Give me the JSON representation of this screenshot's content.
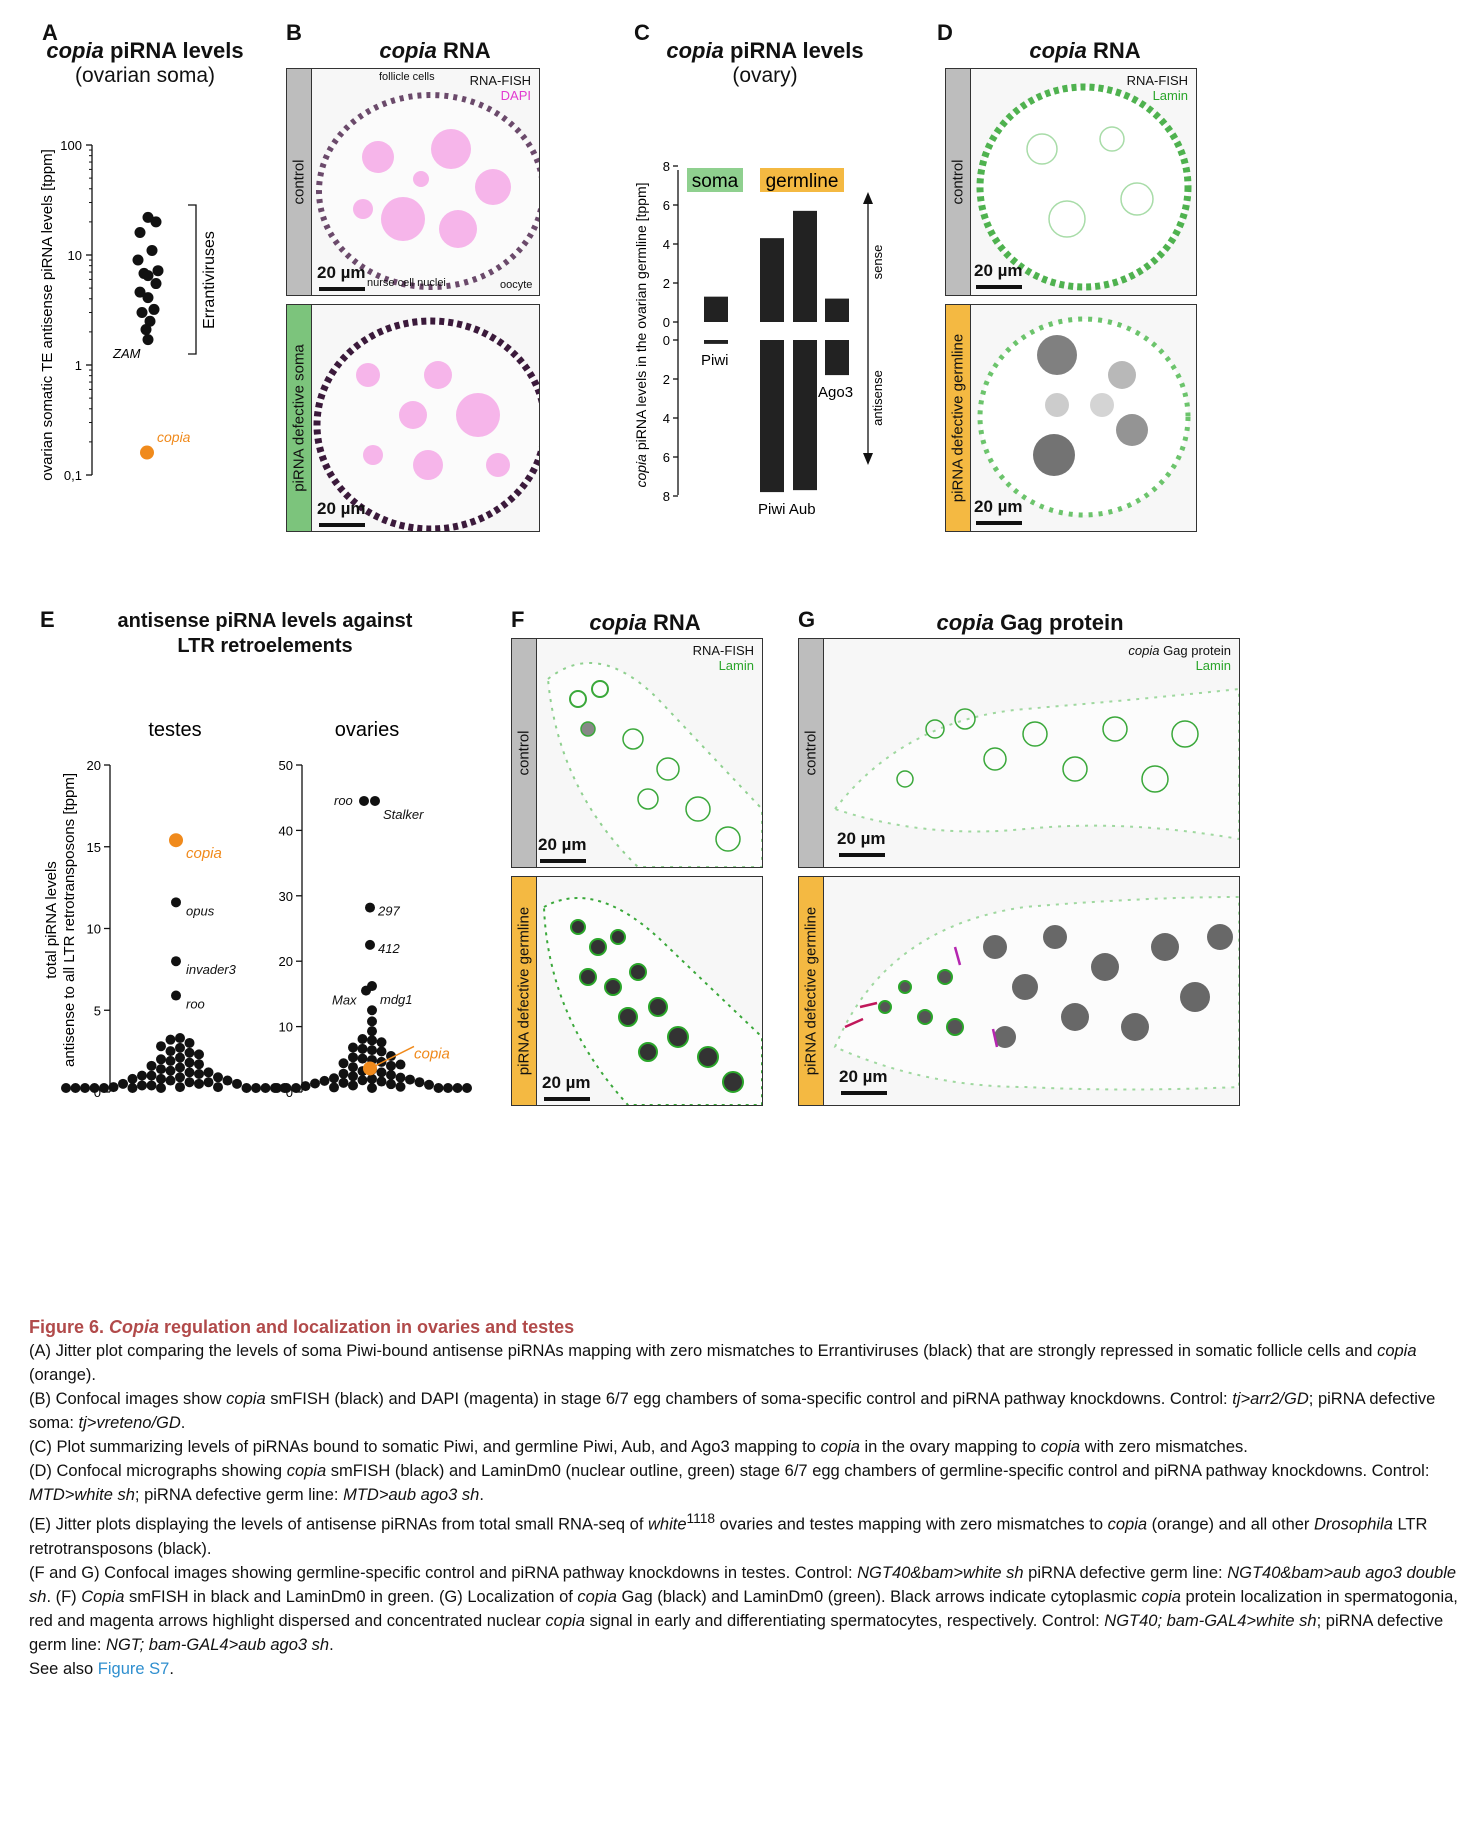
{
  "panelA": {
    "label": "A",
    "title_italic": "copia",
    "title_rest": " piRNA levels",
    "subtitle": "(ovarian soma)",
    "ylabel": "ovarian somatic TE antisense piRNA levels [tppm]",
    "group_label": "Errantiviruses",
    "annotations": {
      "zam": "ZAM",
      "copia": "copia"
    },
    "colors": {
      "black": "#111111",
      "copia": "#f08a1c"
    }
  },
  "panelB": {
    "label": "B",
    "title_italic": "copia",
    "title_rest": " RNA",
    "top": {
      "condition": "control",
      "legend1": "RNA-FISH",
      "legend2": "DAPI",
      "scale": "20 µm",
      "labels": {
        "follicle": "follicle cells",
        "nurse": "nurse cell nuclei",
        "oocyte": "oocyte"
      }
    },
    "bottom": {
      "condition": "piRNA defective soma",
      "scale": "20 µm"
    }
  },
  "panelC": {
    "label": "C",
    "title_italic": "copia",
    "title_rest": " piRNA levels",
    "subtitle": "(ovary)",
    "ylabel_italic": "copia",
    "ylabel_rest": " piRNA levels in the ovarian germline [tppm]",
    "soma_label": "soma",
    "germline_label": "germline",
    "sense_label": "sense",
    "antisense_label": "antisense",
    "bar_labels": {
      "piwi_soma": "Piwi",
      "piwi_aub": "Piwi Aub",
      "ago3": "Ago3"
    }
  },
  "panelD": {
    "label": "D",
    "title_italic": "copia",
    "title_rest": " RNA",
    "top": {
      "condition": "control",
      "legend1": "RNA-FISH",
      "legend2": "Lamin",
      "scale": "20 µm"
    },
    "bottom": {
      "condition": "piRNA defective germline",
      "scale": "20 µm"
    }
  },
  "panelE": {
    "label": "E",
    "title_line1": "antisense piRNA levels against",
    "title_line2": "LTR retroelements",
    "ylabel_line1": "total piRNA levels",
    "ylabel_line2": "antisense to all LTR retrotransposons [tppm]",
    "testes_title": "testes",
    "ovaries_title": "ovaries"
  },
  "panelF": {
    "label": "F",
    "title_italic": "copia",
    "title_rest": " RNA",
    "top": {
      "condition": "control",
      "legend1": "RNA-FISH",
      "legend2": "Lamin",
      "scale": "20 µm"
    },
    "bottom": {
      "condition": "piRNA defective germline",
      "scale": "20 µm"
    }
  },
  "panelG": {
    "label": "G",
    "title_italic": "copia",
    "title_rest": " Gag protein",
    "top": {
      "condition": "control",
      "legend1_italic": "copia",
      "legend1_rest": " Gag protein",
      "legend2": "Lamin",
      "scale": "20 µm"
    },
    "bottom": {
      "condition": "piRNA defective germline",
      "scale": "20 µm"
    }
  },
  "caption": {
    "title_prefix": "Figure 6. ",
    "title_italic": "Copia",
    "title_rest": " regulation and localization in ovaries and testes",
    "a1": "(A) Jitter plot comparing the levels of soma Piwi-bound antisense piRNAs mapping with zero mismatches to Errantiviruses (black) that are strongly repressed in somatic follicle cells and ",
    "a2": "copia",
    "a3": " (orange).",
    "b1": "(B) Confocal images show ",
    "b2": "copia",
    "b3": " smFISH (black) and DAPI (magenta) in stage 6/7 egg chambers of soma-specific control and piRNA pathway knockdowns. Control: ",
    "b4": "tj>arr2/GD",
    "b5": "; piRNA defective soma: ",
    "b6": "tj>vreteno/GD",
    "b7": ".",
    "c1": "(C) Plot summarizing levels of piRNAs bound to somatic Piwi, and germline Piwi, Aub, and Ago3 mapping to ",
    "c2": "copia",
    "c3": " in the ovary mapping to ",
    "c4": "copia",
    "c5": " with zero mismatches.",
    "d1": "(D) Confocal micrographs showing ",
    "d2": "copia",
    "d3": " smFISH (black) and LaminDm0 (nuclear outline, green) stage 6/7 egg chambers of germline-specific control and piRNA pathway knockdowns. Control: ",
    "d4": "MTD>white sh",
    "d5": "; piRNA defective germ line: ",
    "d6": "MTD>aub ago3 sh",
    "d7": ".",
    "e1": "(E) Jitter plots displaying the levels of antisense piRNAs from total small RNA-seq of ",
    "e2": "white",
    "e3": "1118",
    "e4": " ovaries and testes mapping with zero mismatches to ",
    "e5": "copia",
    "e6": " (orange) and all other ",
    "e7": "Drosophila",
    "e8": " LTR retrotransposons (black).",
    "f1": "(F and G) Confocal images showing germline-specific control and piRNA pathway knockdowns in testes. Control: ",
    "f2": "NGT40&bam>white sh",
    "f3": " piRNA defective germ line: ",
    "f4": "NGT40&bam>aub ago3 double sh",
    "f5": ". (F) ",
    "f6": "Copia",
    "f7": " smFISH in black and LaminDm0 in green. (G) Localization of ",
    "f8": "copia",
    "f9": " Gag (black) and LaminDm0 (green). Black arrows indicate cytoplasmic ",
    "f10": "copia",
    "f11": " protein localization in spermatogonia, red and magenta arrows highlight dispersed and concentrated nuclear ",
    "f12": "copia",
    "f13": " signal in early and differentiating spermatocytes, respectively. Control: ",
    "f14": "NGT40; bam-GAL4>white sh",
    "f15": "; piRNA defective germ line: ",
    "f16": "NGT; bam-GAL4>aub ago3 sh",
    "f17": ".",
    "see1": "See also ",
    "see2": "Figure S7",
    "see3": "."
  },
  "chart_data": [
    {
      "type": "scatter",
      "panel": "A",
      "title": "copia piRNA levels (ovarian soma)",
      "ylabel": "ovarian somatic TE antisense piRNA levels [tppm]",
      "yscale": "log",
      "ylim": [
        0.1,
        100
      ],
      "yticks": [
        "0,1",
        "1",
        "10",
        "100"
      ],
      "series": [
        {
          "name": "Errantiviruses",
          "color": "#111111",
          "values": [
            22,
            20,
            16,
            11,
            9,
            7.2,
            6.8,
            6.5,
            5.5,
            4.6,
            4.1,
            3.2,
            3.0,
            2.5,
            2.1,
            1.7
          ]
        },
        {
          "name": "copia",
          "color": "#f08a1c",
          "values": [
            0.16
          ]
        }
      ]
    },
    {
      "type": "bar",
      "panel": "C",
      "ylabel": "copia piRNA levels in the ovarian germline [tppm]",
      "ylim_sense": [
        0,
        8
      ],
      "ylim_antisense": [
        0,
        8
      ],
      "categories": [
        "Piwi (soma)",
        "Piwi (germline)",
        "Aub (germline)",
        "Ago3 (germline)"
      ],
      "series": [
        {
          "name": "sense",
          "values": [
            1.3,
            4.3,
            5.7,
            1.2
          ]
        },
        {
          "name": "antisense",
          "values": [
            0.2,
            7.8,
            7.7,
            1.8
          ]
        }
      ]
    },
    {
      "type": "scatter",
      "panel": "E",
      "subplot": "testes",
      "ylim": [
        0,
        20
      ],
      "yticks": [
        0,
        5,
        10,
        15,
        20
      ],
      "labeled_points": [
        {
          "name": "copia",
          "value": 15.4,
          "color": "#f08a1c"
        },
        {
          "name": "opus",
          "value": 11.6
        },
        {
          "name": "invader3",
          "value": 8.0
        },
        {
          "name": "roo",
          "value": 5.9
        }
      ],
      "other_values": [
        3.3,
        3.2,
        3.0,
        2.8,
        2.7,
        2.5,
        2.4,
        2.3,
        2.1,
        2.0,
        1.9,
        1.8,
        1.7,
        1.6,
        1.5,
        1.4,
        1.3,
        1.2,
        1.2,
        1.1,
        1.0,
        1.0,
        0.9,
        0.9,
        0.8,
        0.8,
        0.7,
        0.7,
        0.6,
        0.6,
        0.5,
        0.5,
        0.5,
        0.4,
        0.4,
        0.3,
        0.3,
        0.3,
        0.2,
        0.2,
        0.2,
        0.1,
        0.1,
        0.1,
        0.1,
        0.05,
        0.05,
        0.05,
        0.05,
        0.05
      ]
    },
    {
      "type": "scatter",
      "panel": "E",
      "subplot": "ovaries",
      "ylim": [
        0,
        50
      ],
      "yticks": [
        0,
        10,
        20,
        30,
        40,
        50
      ],
      "labeled_points": [
        {
          "name": "roo",
          "value": 44.5
        },
        {
          "name": "Stalker",
          "value": 44.5
        },
        {
          "name": "297",
          "value": 28.2
        },
        {
          "name": "412",
          "value": 22.5
        },
        {
          "name": "Max",
          "value": 15.5
        },
        {
          "name": "mdg1",
          "value": 16.2
        },
        {
          "name": "copia",
          "value": 3.6,
          "color": "#f08a1c"
        }
      ],
      "other_values": [
        12.5,
        10.8,
        9.3,
        8.1,
        7.9,
        7.6,
        6.8,
        6.6,
        6.4,
        6.2,
        5.5,
        5.3,
        5.1,
        4.9,
        4.6,
        4.4,
        4.2,
        4.0,
        3.8,
        3.4,
        3.2,
        3.0,
        2.8,
        2.6,
        2.4,
        2.2,
        2.1,
        2.0,
        1.9,
        1.8,
        1.7,
        1.6,
        1.5,
        1.4,
        1.3,
        1.2,
        1.1,
        1.0,
        0.9,
        0.8,
        0.7,
        0.6,
        0.5,
        0.4,
        0.3,
        0.2,
        0.2,
        0.1,
        0.1
      ]
    }
  ]
}
